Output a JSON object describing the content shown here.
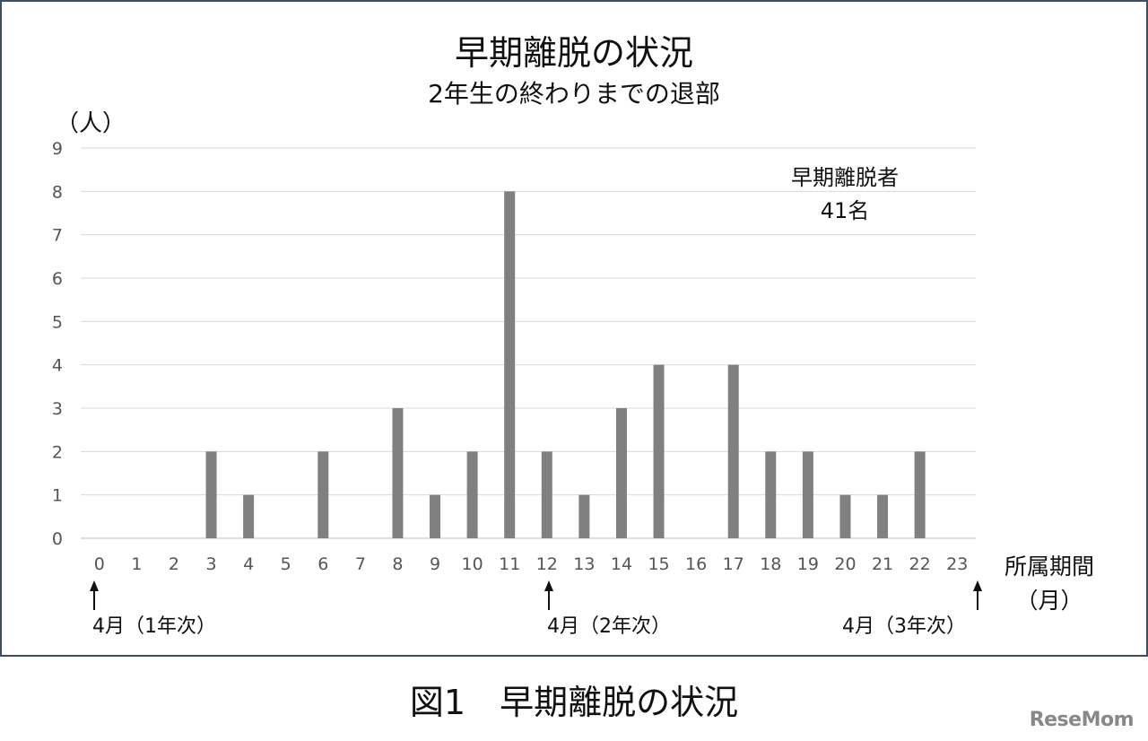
{
  "chart_data": {
    "type": "bar",
    "title": "早期離脱の状況",
    "subtitle": "2年生の終わりまでの退部",
    "ylabel": "（人）",
    "xlabel_line1": "所属期間",
    "xlabel_line2": "（月）",
    "ylim": [
      0,
      9
    ],
    "yticks": [
      "0",
      "1",
      "2",
      "3",
      "4",
      "5",
      "6",
      "7",
      "8",
      "9"
    ],
    "categories": [
      "0",
      "1",
      "2",
      "3",
      "4",
      "5",
      "6",
      "7",
      "8",
      "9",
      "10",
      "11",
      "12",
      "13",
      "14",
      "15",
      "16",
      "17",
      "18",
      "19",
      "20",
      "21",
      "22",
      "23"
    ],
    "values": [
      0,
      0,
      0,
      2,
      1,
      0,
      2,
      0,
      3,
      1,
      2,
      8,
      2,
      1,
      3,
      4,
      0,
      4,
      2,
      2,
      1,
      1,
      2,
      0
    ],
    "bar_color": "#808080",
    "grid": true,
    "annotation_line1": "早期離脱者",
    "annotation_line2": "41名",
    "markers": [
      {
        "label": "4月（1年次）"
      },
      {
        "label": "4月（2年次）"
      },
      {
        "label": "4月（3年次）"
      }
    ]
  },
  "caption": "図1　早期離脱の状況",
  "logo": "ReseMom"
}
